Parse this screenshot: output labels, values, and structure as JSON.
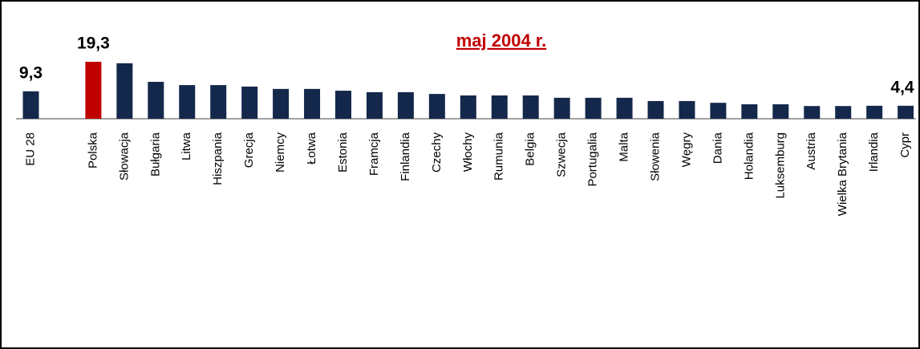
{
  "chart_data": {
    "type": "bar",
    "title": "maj 2004 r.",
    "categories": [
      "EU 28",
      null,
      "Polska",
      "Słowacja",
      "Bułgaria",
      "Litwa",
      "Hiszpania",
      "Grecja",
      "Niemcy",
      "Łotwa",
      "Estonia",
      "Framcja",
      "Finlandia",
      "Czechy",
      "Włochy",
      "Rumunia",
      "Belgia",
      "Szwecja",
      "Portugalia",
      "Malta",
      "Słowenia",
      "Węgry",
      "Dania",
      "Holandia",
      "Luksemburg",
      "Austria",
      "Wielka Brytania",
      "Irlandia",
      "Cypr"
    ],
    "values": [
      9.3,
      null,
      19.3,
      18.8,
      12.5,
      11.4,
      11.4,
      10.9,
      10.1,
      10.1,
      9.5,
      9.0,
      9.0,
      8.4,
      7.9,
      7.9,
      7.9,
      7.1,
      7.1,
      7.1,
      6.0,
      6.0,
      5.4,
      4.9,
      4.9,
      4.3,
      4.3,
      4.4,
      4.4
    ],
    "value_labels": [
      "9,3",
      null,
      "19,3",
      null,
      null,
      null,
      null,
      null,
      null,
      null,
      null,
      null,
      null,
      null,
      null,
      null,
      null,
      null,
      null,
      null,
      null,
      null,
      null,
      null,
      null,
      null,
      null,
      null,
      "4,4"
    ],
    "colors": [
      "#14284b",
      null,
      "#c00000",
      "#14284b",
      "#14284b",
      "#14284b",
      "#14284b",
      "#14284b",
      "#14284b",
      "#14284b",
      "#14284b",
      "#14284b",
      "#14284b",
      "#14284b",
      "#14284b",
      "#14284b",
      "#14284b",
      "#14284b",
      "#14284b",
      "#14284b",
      "#14284b",
      "#14284b",
      "#14284b",
      "#14284b",
      "#14284b",
      "#14284b",
      "#14284b",
      "#14284b",
      "#14284b"
    ]
  }
}
